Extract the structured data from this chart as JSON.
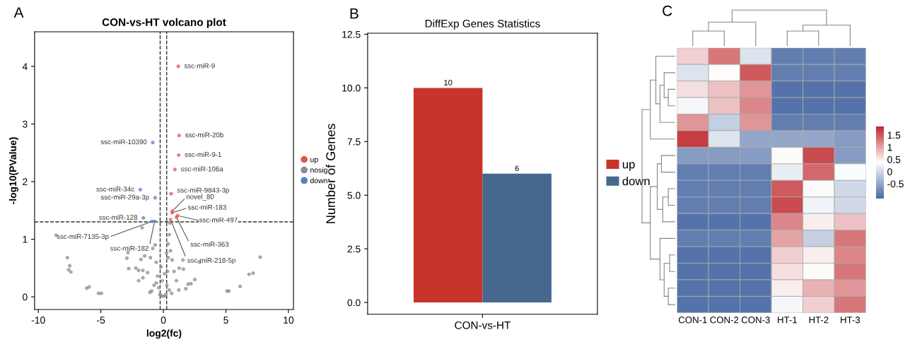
{
  "chart_data": [
    {
      "type": "scatter",
      "title": "CON-vs-HT volcano plot",
      "xlabel": "log2(fc)",
      "ylabel": "-log10(PValue)",
      "xlim": [
        -10.3,
        10.4
      ],
      "ylim": [
        -0.22,
        4.6
      ],
      "xticks": [
        -10,
        -5,
        0,
        5,
        10
      ],
      "yticks": [
        0,
        1,
        2,
        3,
        4
      ],
      "grid": false,
      "legend": "right",
      "marker": "circle",
      "series": [
        {
          "name": "up",
          "color": "#e8524a",
          "x": [
            1.19,
            1.26,
            1.22,
            0.92,
            0.62,
            0.72,
            0.7,
            1.13,
            1.05,
            0.57
          ],
          "values": [
            4.0,
            2.8,
            2.46,
            2.21,
            1.79,
            1.49,
            1.46,
            1.41,
            1.38,
            1.34
          ]
        },
        {
          "name": "nosig",
          "color": "#8c8c8c",
          "x": [
            -8.58,
            -7.68,
            -7.49,
            -7.58,
            -7.4,
            -6.13,
            -5.94,
            -5.19,
            -4.96,
            -2.83,
            -2.92,
            -2.77,
            -2.2,
            -1.98,
            -1.64,
            -1.7,
            -1.79,
            -1.5,
            -1.26,
            -1.98,
            -1.64,
            -1.08,
            -1.04,
            -0.85,
            -0.66,
            -0.57,
            -0.47,
            -0.38,
            -0.28,
            -0.19,
            -0.09,
            0.09,
            0.19,
            0.28,
            0.32,
            0.38,
            0.38,
            0.47,
            0.51,
            0.57,
            0.7,
            0.85,
            1.04,
            1.23,
            1.26,
            1.6,
            1.57,
            1.79,
            1.98,
            2.21,
            2.51,
            2.89,
            5.09,
            5.23,
            6.13,
            6.85,
            7.17,
            7.74,
            -0.57,
            -0.75,
            -0.94,
            0.47,
            0.66,
            -0.09,
            0.09,
            -0.19,
            0.25
          ],
          "values": [
            1.07,
            0.68,
            0.54,
            0.47,
            0.43,
            0.15,
            0.17,
            0.06,
            0.06,
            0.77,
            0.67,
            0.49,
            0.5,
            0.46,
            0.46,
            1.2,
            0.65,
            0.71,
            0.42,
            0.28,
            0.33,
            0.08,
            0.68,
            0.84,
            0.9,
            0.6,
            0.36,
            0.16,
            0.04,
            0.02,
            0.01,
            0.01,
            0.04,
            0.2,
            0.44,
            0.68,
            0.92,
            1.08,
            1.28,
            0.8,
            0.64,
            0.44,
            0.28,
            0.12,
            0.5,
            0.48,
            0.64,
            0.14,
            0.22,
            0.23,
            0.3,
            0.6,
            0.1,
            0.1,
            0.18,
            0.39,
            0.41,
            0.69,
            0.24,
            0.2,
            0.1,
            0.12,
            0.06,
            0.28,
            0.4,
            0.52,
            0.76
          ]
        },
        {
          "name": "down",
          "color": "#5b7fc7",
          "x": [
            -0.85,
            -1.85,
            -0.66,
            -1.6,
            -0.9,
            -0.7
          ],
          "values": [
            2.68,
            1.86,
            1.72,
            1.37,
            1.31,
            1.31
          ]
        }
      ],
      "ref_lines": [
        {
          "axis": "x",
          "value": -0.26,
          "line_style": "dashed"
        },
        {
          "axis": "x",
          "value": 0.26,
          "line_style": "dashed"
        },
        {
          "axis": "y",
          "value": 1.301,
          "line_style": "dashed"
        }
      ],
      "annotations": [
        "A",
        {
          "text": "ssc-miR-9",
          "x": 1.19,
          "y": 4.0
        },
        {
          "text": "ssc-miR-20b",
          "x": 1.26,
          "y": 2.8
        },
        {
          "text": "ssc-miR-9-1",
          "x": 1.22,
          "y": 2.46
        },
        {
          "text": "ssc-miR-106a",
          "x": 0.92,
          "y": 2.21
        },
        {
          "text": "ssc-miR-9843-3p",
          "x": 0.62,
          "y": 1.79
        },
        {
          "text": "novel_80",
          "x": 0.72,
          "y": 1.49
        },
        {
          "text": "ssc-miR-183",
          "x": 0.7,
          "y": 1.46
        },
        {
          "text": "ssc-miR-497",
          "x": 1.13,
          "y": 1.41
        },
        {
          "text": "ssc-miR-363",
          "x": 1.05,
          "y": 1.38
        },
        {
          "text": "ssc-miR-218-5p",
          "x": 0.57,
          "y": 1.34
        },
        {
          "text": "ssc-miR-10390",
          "x": -0.85,
          "y": 2.68
        },
        {
          "text": "ssc-miR-34c",
          "x": -1.85,
          "y": 1.86
        },
        {
          "text": "ssc-miR-29a-3p",
          "x": -0.66,
          "y": 1.72
        },
        {
          "text": "ssc-miR-128",
          "x": -1.6,
          "y": 1.37
        },
        {
          "text": "ssc-miR-7135-3p",
          "x": -0.9,
          "y": 1.31
        },
        {
          "text": "ssc-miR-182",
          "x": -0.7,
          "y": 1.31
        }
      ]
    },
    {
      "type": "bar",
      "title": "DiffExp Genes Statistics",
      "ylabel": "Number of Genes",
      "categories": [
        "CON-vs-HT"
      ],
      "ylim": [
        -0.55,
        12.55
      ],
      "yticks": [
        {
          "value": 0,
          "label": "0.0"
        },
        {
          "value": 2.5,
          "label": "2.5"
        },
        {
          "value": 5,
          "label": "5.0"
        },
        {
          "value": 7.5,
          "label": "7.5"
        },
        {
          "value": 10,
          "label": "10.0"
        },
        {
          "value": 12.5,
          "label": "12.5"
        }
      ],
      "grid": false,
      "legend": "right",
      "data_labels": true,
      "series": [
        {
          "name": "up",
          "color": "#c8342b",
          "values": [
            10
          ]
        },
        {
          "name": "down",
          "color": "#46688f",
          "values": [
            6
          ]
        }
      ],
      "annotations": [
        "B"
      ]
    },
    {
      "type": "heatmap",
      "categories": [
        "CON-1",
        "CON-2",
        "CON-3",
        "HT-1",
        "HT-2",
        "HT-3"
      ],
      "y_categories": [
        null,
        null,
        null,
        null,
        null,
        null,
        null,
        null,
        null,
        null,
        null,
        null,
        null,
        null,
        null,
        null
      ],
      "tick_labels": "x",
      "clim": [
        -1.1,
        1.85
      ],
      "cticks": [
        -0.5,
        0,
        0.5,
        1,
        1.5
      ],
      "cells": [
        [
          0.7,
          1.3,
          0.1,
          -0.9,
          -0.9,
          -0.9
        ],
        [
          0.1,
          0.4,
          1.5,
          -0.9,
          -0.9,
          -0.9
        ],
        [
          0.6,
          0.8,
          1.1,
          -1.0,
          -1.0,
          -1.0
        ],
        [
          0.3,
          0.8,
          1.2,
          -1.0,
          -1.0,
          -1.0
        ],
        [
          1.1,
          -0.1,
          1.1,
          -0.9,
          -0.9,
          -0.9
        ],
        [
          1.7,
          0.1,
          -0.5,
          -0.5,
          -0.5,
          -0.6
        ],
        [
          -0.6,
          -0.6,
          -0.6,
          0.4,
          1.6,
          -0.6
        ],
        [
          -0.9,
          -0.9,
          -0.9,
          0.2,
          1.4,
          0.35
        ],
        [
          -0.9,
          -0.9,
          -0.9,
          1.5,
          0.4,
          0.0
        ],
        [
          -0.9,
          -0.9,
          -0.9,
          1.6,
          0.25,
          0.0
        ],
        [
          -1.0,
          -1.0,
          -1.0,
          1.2,
          0.5,
          0.8
        ],
        [
          -0.9,
          -0.9,
          -0.9,
          1.0,
          -0.1,
          1.3
        ],
        [
          -1.0,
          -1.0,
          -1.0,
          0.7,
          0.5,
          1.2
        ],
        [
          -1.0,
          -1.0,
          -1.0,
          0.6,
          0.4,
          1.3
        ],
        [
          -1.0,
          -1.0,
          -1.0,
          0.5,
          0.9,
          1.1
        ],
        [
          -1.0,
          -1.0,
          -1.0,
          0.3,
          0.7,
          1.3
        ]
      ],
      "annotations": [
        "C"
      ]
    }
  ]
}
